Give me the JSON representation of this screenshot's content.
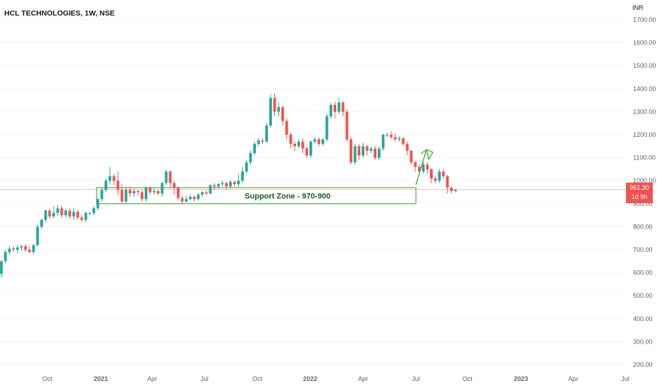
{
  "header": {
    "title": "HCL TECHNOLOGIES, 1W, NSE",
    "currency": "INR"
  },
  "price_tag": {
    "price": "961.30",
    "countdown": "1d 9h"
  },
  "annotation": {
    "label": "Support Zone - 970-900",
    "zone_high": 970,
    "zone_low": 900
  },
  "colors": {
    "up": "#26a69a",
    "down": "#ef5350",
    "zone": "#4caf50",
    "zone_text": "#1b5e20",
    "arrow": "#4caf50",
    "grid": "#f0f3fa",
    "axis_text": "#5d606b",
    "price_line": "#ef5350"
  },
  "chart_data": {
    "type": "candlestick",
    "title": "HCL TECHNOLOGIES, 1W, NSE",
    "ylabel": "INR",
    "ylim": [
      185,
      1725
    ],
    "y_ticks": [
      "200.00",
      "300.00",
      "400.00",
      "500.00",
      "600.00",
      "700.00",
      "800.00",
      "900.00",
      "1000.00",
      "1100.00",
      "1200.00",
      "1300.00",
      "1400.00",
      "1500.00",
      "1600.00",
      "1700.00"
    ],
    "x_ticks": [
      "Oct",
      "2021",
      "Apr",
      "Jul",
      "Oct",
      "2022",
      "Apr",
      "Jul",
      "Oct",
      "2023",
      "Apr",
      "Jul"
    ],
    "last_price": 961.3,
    "candles": [
      [
        595,
        650,
        580,
        655
      ],
      [
        650,
        690,
        640,
        700
      ],
      [
        690,
        705,
        680,
        715
      ],
      [
        705,
        700,
        690,
        715
      ],
      [
        700,
        710,
        685,
        720
      ],
      [
        710,
        715,
        695,
        720
      ],
      [
        715,
        700,
        690,
        725
      ],
      [
        700,
        690,
        685,
        715
      ],
      [
        690,
        720,
        680,
        725
      ],
      [
        720,
        800,
        715,
        810
      ],
      [
        800,
        830,
        790,
        835
      ],
      [
        830,
        870,
        820,
        875
      ],
      [
        870,
        845,
        835,
        875
      ],
      [
        845,
        860,
        835,
        890
      ],
      [
        860,
        880,
        845,
        895
      ],
      [
        880,
        850,
        840,
        890
      ],
      [
        850,
        870,
        840,
        880
      ],
      [
        870,
        845,
        835,
        880
      ],
      [
        845,
        865,
        830,
        880
      ],
      [
        865,
        840,
        830,
        875
      ],
      [
        840,
        830,
        820,
        850
      ],
      [
        830,
        860,
        820,
        865
      ],
      [
        860,
        860,
        850,
        865
      ],
      [
        860,
        880,
        850,
        890
      ],
      [
        880,
        920,
        870,
        925
      ],
      [
        920,
        960,
        910,
        970
      ],
      [
        960,
        1000,
        950,
        1010
      ],
      [
        1000,
        1020,
        985,
        1060
      ],
      [
        1020,
        1000,
        980,
        1030
      ],
      [
        1000,
        960,
        940,
        1040
      ],
      [
        960,
        910,
        900,
        985
      ],
      [
        910,
        960,
        900,
        975
      ],
      [
        960,
        945,
        930,
        975
      ],
      [
        945,
        955,
        930,
        965
      ],
      [
        955,
        950,
        935,
        960
      ],
      [
        950,
        920,
        910,
        960
      ],
      [
        920,
        970,
        910,
        975
      ],
      [
        970,
        950,
        940,
        975
      ],
      [
        950,
        955,
        940,
        965
      ],
      [
        955,
        945,
        935,
        960
      ],
      [
        945,
        990,
        930,
        995
      ],
      [
        990,
        1040,
        980,
        1050
      ],
      [
        1040,
        990,
        970,
        1045
      ],
      [
        990,
        970,
        940,
        1000
      ],
      [
        970,
        925,
        915,
        975
      ],
      [
        925,
        910,
        900,
        935
      ],
      [
        910,
        920,
        905,
        935
      ],
      [
        920,
        930,
        915,
        940
      ],
      [
        930,
        920,
        910,
        935
      ],
      [
        920,
        940,
        915,
        945
      ],
      [
        940,
        950,
        930,
        955
      ],
      [
        950,
        945,
        935,
        960
      ],
      [
        945,
        980,
        940,
        985
      ],
      [
        980,
        975,
        960,
        990
      ],
      [
        975,
        985,
        965,
        990
      ],
      [
        985,
        990,
        975,
        1000
      ],
      [
        990,
        975,
        960,
        995
      ],
      [
        975,
        995,
        965,
        1005
      ],
      [
        995,
        985,
        975,
        1000
      ],
      [
        985,
        1000,
        975,
        1030
      ],
      [
        1000,
        1040,
        990,
        1060
      ],
      [
        1040,
        1080,
        1030,
        1090
      ],
      [
        1080,
        1120,
        1070,
        1130
      ],
      [
        1120,
        1160,
        1110,
        1170
      ],
      [
        1160,
        1175,
        1150,
        1185
      ],
      [
        1175,
        1170,
        1160,
        1185
      ],
      [
        1170,
        1240,
        1165,
        1250
      ],
      [
        1240,
        1360,
        1230,
        1375
      ],
      [
        1360,
        1300,
        1280,
        1380
      ],
      [
        1300,
        1320,
        1280,
        1340
      ],
      [
        1320,
        1260,
        1240,
        1325
      ],
      [
        1260,
        1200,
        1180,
        1270
      ],
      [
        1200,
        1160,
        1140,
        1210
      ],
      [
        1160,
        1150,
        1130,
        1170
      ],
      [
        1150,
        1170,
        1140,
        1180
      ],
      [
        1170,
        1140,
        1120,
        1185
      ],
      [
        1140,
        1110,
        1100,
        1150
      ],
      [
        1110,
        1170,
        1100,
        1175
      ],
      [
        1170,
        1180,
        1160,
        1190
      ],
      [
        1180,
        1160,
        1150,
        1190
      ],
      [
        1160,
        1180,
        1150,
        1185
      ],
      [
        1180,
        1280,
        1170,
        1290
      ],
      [
        1280,
        1330,
        1270,
        1340
      ],
      [
        1330,
        1300,
        1270,
        1345
      ],
      [
        1300,
        1340,
        1290,
        1360
      ],
      [
        1340,
        1300,
        1280,
        1345
      ],
      [
        1300,
        1180,
        1170,
        1310
      ],
      [
        1180,
        1080,
        1070,
        1190
      ],
      [
        1080,
        1150,
        1070,
        1160
      ],
      [
        1150,
        1110,
        1090,
        1160
      ],
      [
        1110,
        1150,
        1100,
        1165
      ],
      [
        1150,
        1130,
        1110,
        1155
      ],
      [
        1130,
        1140,
        1120,
        1150
      ],
      [
        1140,
        1100,
        1090,
        1150
      ],
      [
        1100,
        1140,
        1090,
        1150
      ],
      [
        1140,
        1200,
        1130,
        1205
      ],
      [
        1200,
        1200,
        1190,
        1210
      ],
      [
        1200,
        1190,
        1180,
        1215
      ],
      [
        1190,
        1180,
        1170,
        1205
      ],
      [
        1180,
        1185,
        1170,
        1195
      ],
      [
        1185,
        1160,
        1150,
        1190
      ],
      [
        1160,
        1130,
        1110,
        1170
      ],
      [
        1130,
        1080,
        1070,
        1135
      ],
      [
        1080,
        1060,
        1040,
        1085
      ],
      [
        1060,
        1040,
        1030,
        1070
      ],
      [
        1040,
        1070,
        1030,
        1080
      ],
      [
        1070,
        1050,
        1030,
        1080
      ],
      [
        1050,
        1010,
        990,
        1055
      ],
      [
        1010,
        1000,
        990,
        1020
      ],
      [
        1000,
        1040,
        990,
        1050
      ],
      [
        1040,
        1020,
        1010,
        1050
      ],
      [
        1020,
        970,
        945,
        1025
      ],
      [
        970,
        955,
        945,
        975
      ],
      [
        955,
        961.3,
        950,
        965
      ]
    ]
  }
}
